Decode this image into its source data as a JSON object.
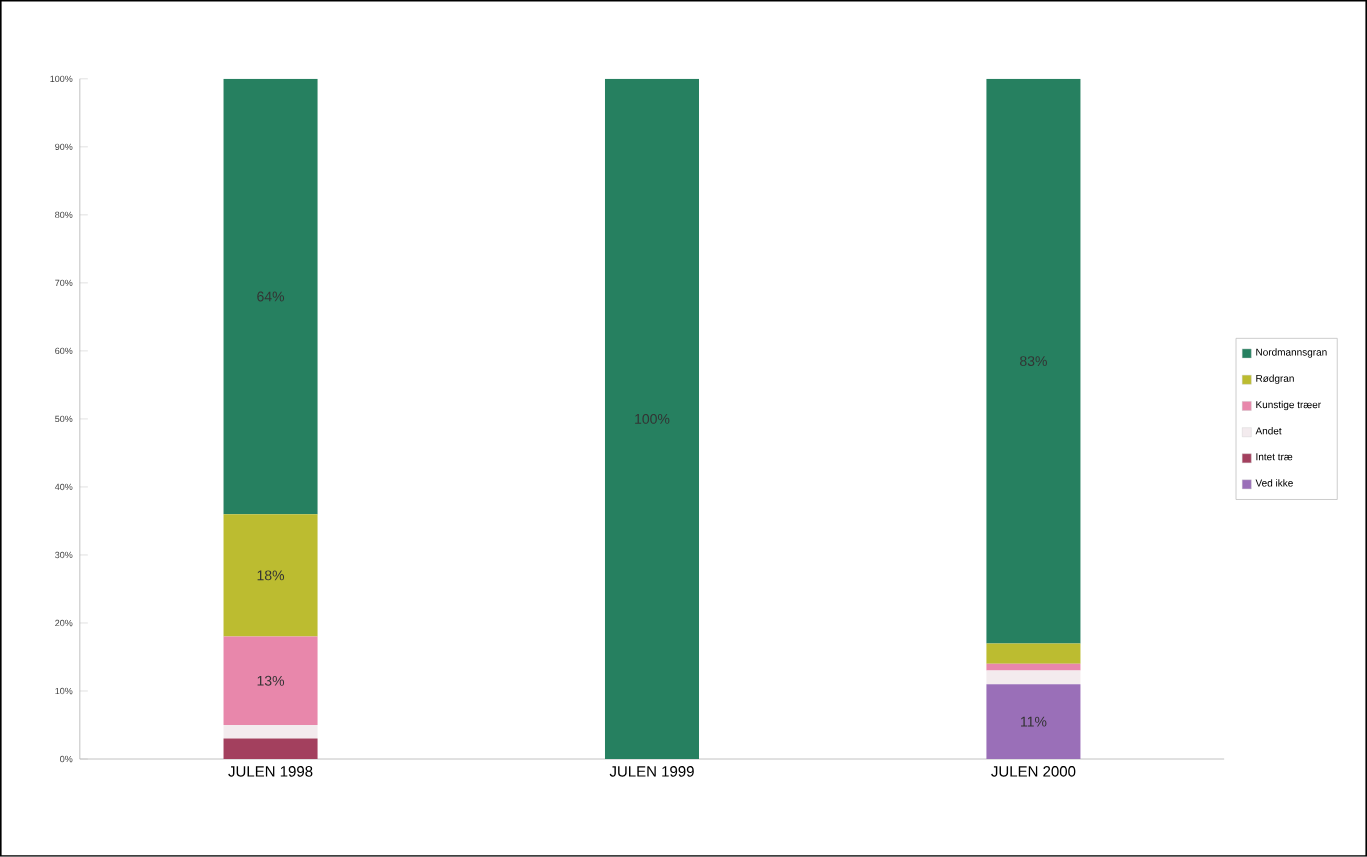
{
  "chart_data": {
    "type": "bar",
    "stacked": true,
    "categories": [
      "JULEN 1998",
      "JULEN 1999",
      "JULEN 2000"
    ],
    "series": [
      {
        "name": "Ved ikke",
        "color": "#9a6fb8",
        "values": [
          0,
          0,
          11
        ],
        "value_labels": [
          null,
          null,
          "11%"
        ]
      },
      {
        "name": "Intet træ",
        "color": "#a3405e",
        "values": [
          3,
          0,
          0
        ],
        "value_labels": [
          null,
          null,
          null
        ]
      },
      {
        "name": "Andet",
        "color": "#f3ebee",
        "values": [
          2,
          0,
          2
        ],
        "value_labels": [
          null,
          null,
          null
        ]
      },
      {
        "name": "Kunstige træer",
        "color": "#e887ab",
        "values": [
          13,
          0,
          1
        ],
        "value_labels": [
          "13%",
          null,
          null
        ]
      },
      {
        "name": "Rødgran",
        "color": "#bcbc30",
        "values": [
          18,
          0,
          3
        ],
        "value_labels": [
          "18%",
          null,
          null
        ]
      },
      {
        "name": "Nordmannsgran",
        "color": "#268060",
        "values": [
          64,
          100,
          83
        ],
        "value_labels": [
          "64%",
          "100%",
          "83%"
        ]
      }
    ],
    "ylim": [
      0,
      100
    ],
    "yticks": [
      {
        "value": 0,
        "label": "0%"
      },
      {
        "value": 10,
        "label": "10%"
      },
      {
        "value": 20,
        "label": "20%"
      },
      {
        "value": 30,
        "label": "30%"
      },
      {
        "value": 40,
        "label": "40%"
      },
      {
        "value": 50,
        "label": "50%"
      },
      {
        "value": 60,
        "label": "60%"
      },
      {
        "value": 70,
        "label": "70%"
      },
      {
        "value": 80,
        "label": "80%"
      },
      {
        "value": 90,
        "label": "90%"
      },
      {
        "value": 100,
        "label": "100%"
      }
    ],
    "grid": false,
    "legend": "right"
  }
}
